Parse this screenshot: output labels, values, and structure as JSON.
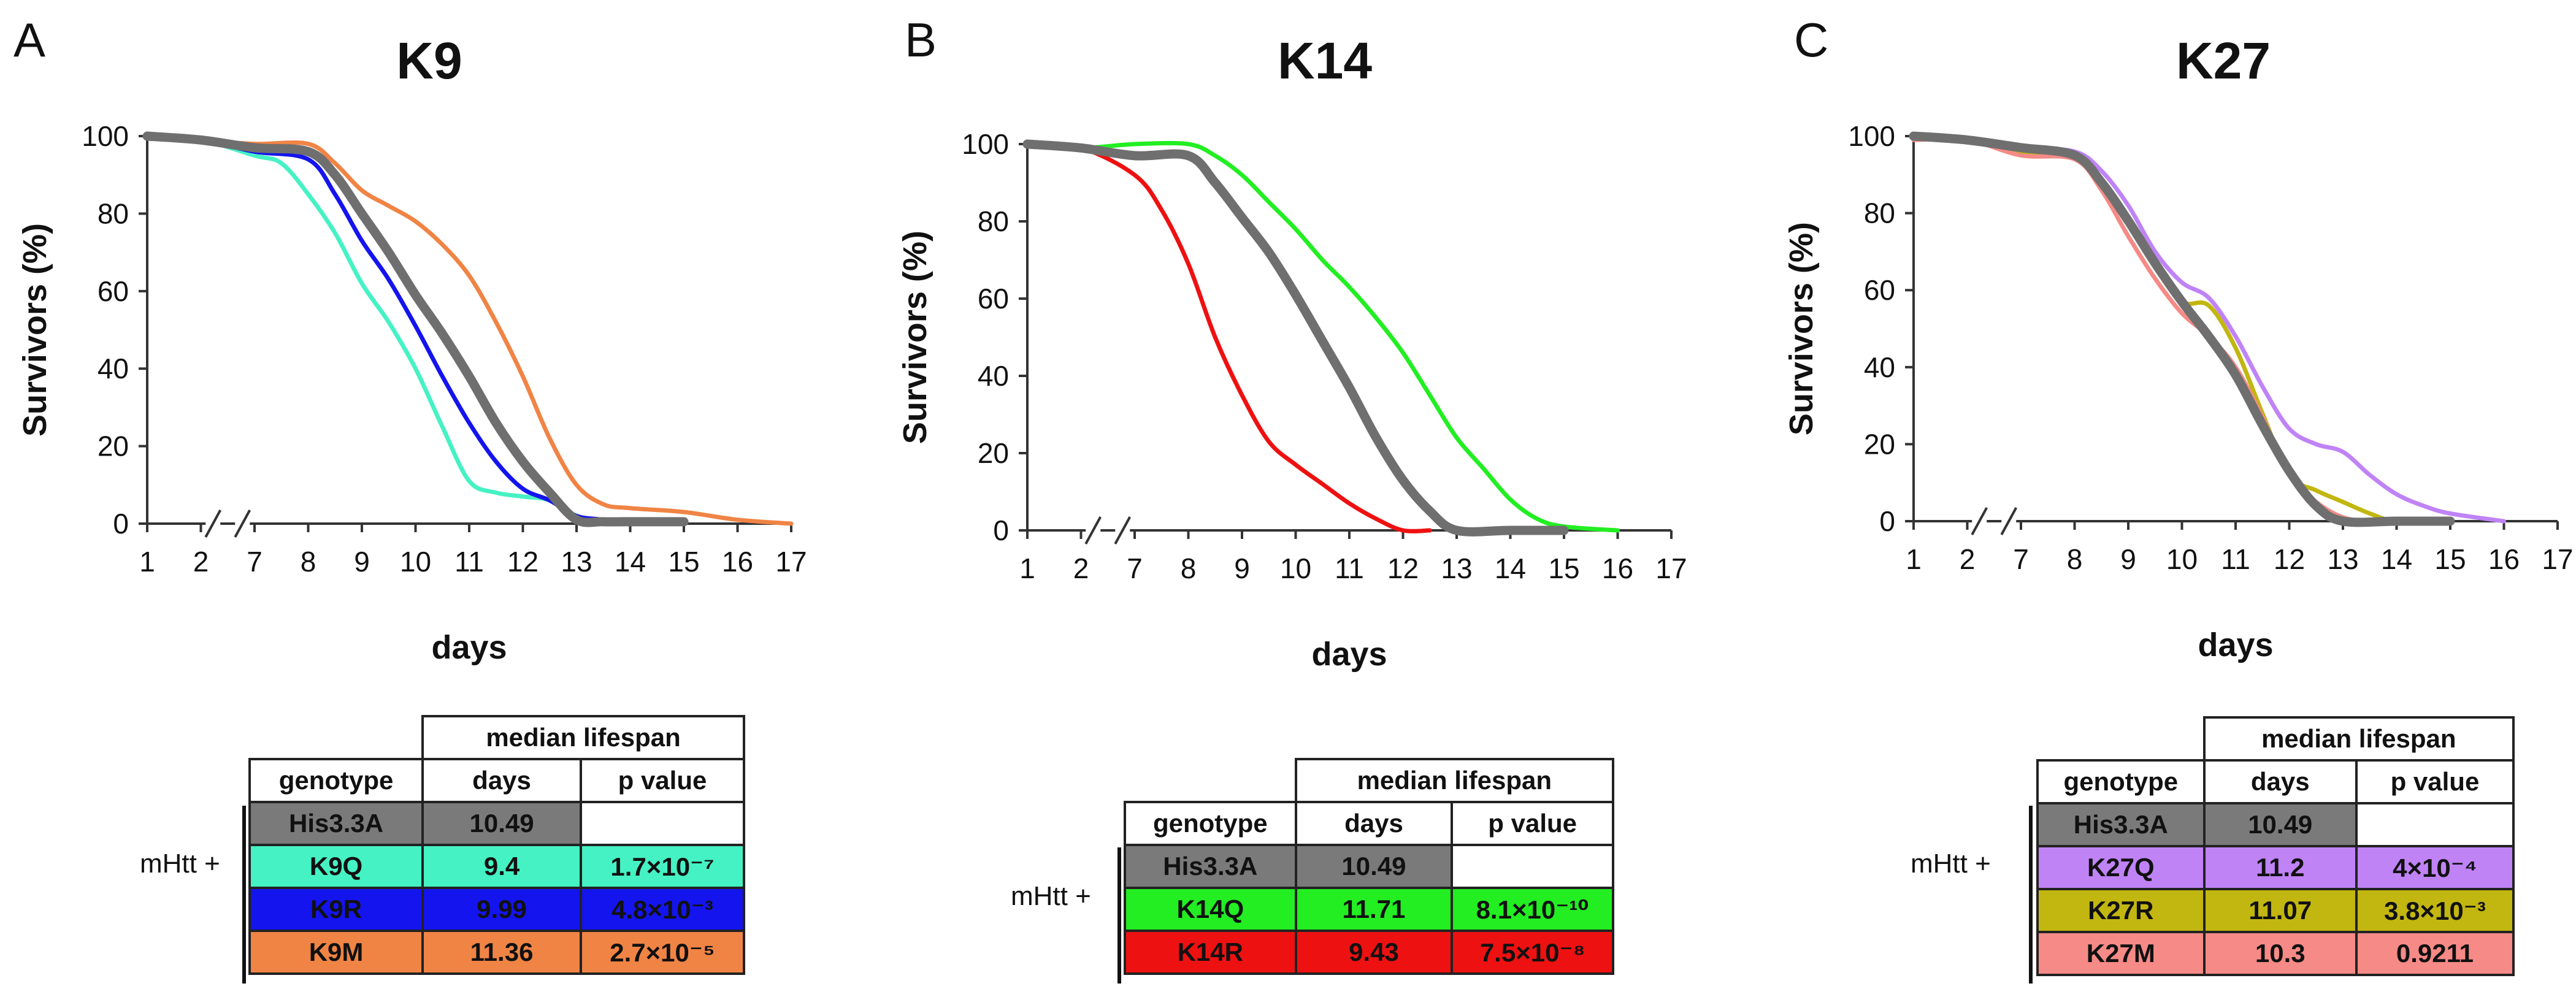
{
  "figure": {
    "panels": [
      {
        "id": "A",
        "panel_label": "A",
        "table": {
          "group_label": "mHtt +",
          "header_span": "median lifespan",
          "col_genotype": "genotype",
          "col_days": "days",
          "col_p": "p value",
          "rows": [
            {
              "genotype": "His3.3A",
              "days": "10.49",
              "p": "",
              "color": "#7a7a7a"
            },
            {
              "genotype": "K9Q",
              "days": "9.4",
              "p": "1.7×10⁻⁷",
              "color": "#45f2c4"
            },
            {
              "genotype": "K9R",
              "days": "9.99",
              "p": "4.8×10⁻³",
              "color": "#1414ee"
            },
            {
              "genotype": "K9M",
              "days": "11.36",
              "p": "2.7×10⁻⁵",
              "color": "#f08445"
            }
          ]
        }
      },
      {
        "id": "B",
        "panel_label": "B",
        "table": {
          "group_label": "mHtt +",
          "header_span": "median lifespan",
          "col_genotype": "genotype",
          "col_days": "days",
          "col_p": "p value",
          "rows": [
            {
              "genotype": "His3.3A",
              "days": "10.49",
              "p": "",
              "color": "#7a7a7a"
            },
            {
              "genotype": "K14Q",
              "days": "11.71",
              "p": "8.1×10⁻¹⁰",
              "color": "#22ee22"
            },
            {
              "genotype": "K14R",
              "days": "9.43",
              "p": "7.5×10⁻⁸",
              "color": "#ee1111"
            }
          ]
        }
      },
      {
        "id": "C",
        "panel_label": "C",
        "table": {
          "group_label": "mHtt +",
          "header_span": "median lifespan",
          "col_genotype": "genotype",
          "col_days": "days",
          "col_p": "p value",
          "rows": [
            {
              "genotype": "His3.3A",
              "days": "10.49",
              "p": "",
              "color": "#7a7a7a"
            },
            {
              "genotype": "K27Q",
              "days": "11.2",
              "p": "4×10⁻⁴",
              "color": "#c083f6"
            },
            {
              "genotype": "K27R",
              "days": "11.07",
              "p": "3.8×10⁻³",
              "color": "#c2b610"
            },
            {
              "genotype": "K27M",
              "days": "10.3",
              "p": "0.9211",
              "color": "#f58a86"
            }
          ]
        }
      }
    ]
  },
  "chart_data": [
    {
      "type": "line",
      "title": "K9",
      "xlabel": "days",
      "ylabel": "Survivors (%)",
      "x_ticks": [
        "1",
        "2",
        "7",
        "8",
        "9",
        "10",
        "11",
        "12",
        "13",
        "14",
        "15",
        "16",
        "17"
      ],
      "y_ticks": [
        "0",
        "20",
        "40",
        "60",
        "80",
        "100"
      ],
      "ylim": [
        0,
        100
      ],
      "axis_break": "between 2 and 7",
      "series": [
        {
          "name": "His3.3A",
          "color": "#6f6f6f",
          "width": "thick",
          "x": [
            1,
            2,
            7,
            8,
            8.5,
            9,
            9.5,
            10,
            10.5,
            11,
            11.5,
            12,
            12.5,
            13,
            13.5,
            14,
            15
          ],
          "y": [
            100,
            99,
            97,
            96,
            90,
            80,
            70,
            59,
            49,
            38,
            26,
            16,
            8,
            1,
            0.5,
            0.5,
            0.5
          ]
        },
        {
          "name": "K9Q",
          "color": "#45f2c4",
          "width": "normal",
          "x": [
            1,
            2,
            7,
            7.5,
            8,
            8.5,
            9,
            9.5,
            10,
            10.5,
            11,
            11.5,
            12,
            12.5,
            13,
            13.5,
            14
          ],
          "y": [
            100,
            99,
            95,
            93,
            85,
            75,
            62,
            52,
            40,
            25,
            11,
            8,
            7,
            6,
            2,
            0,
            0
          ]
        },
        {
          "name": "K9R",
          "color": "#1414ee",
          "width": "normal",
          "x": [
            1,
            2,
            7,
            8,
            8.5,
            9,
            9.5,
            10,
            10.5,
            11,
            11.5,
            12,
            12.5,
            13,
            13.5,
            14,
            14.5
          ],
          "y": [
            100,
            99,
            96,
            94,
            85,
            73,
            63,
            51,
            38,
            26,
            16,
            9,
            6,
            2,
            1,
            0,
            0
          ]
        },
        {
          "name": "K9M",
          "color": "#f08445",
          "width": "normal",
          "x": [
            1,
            2,
            7,
            8,
            8.5,
            9,
            9.5,
            10,
            10.5,
            11,
            11.5,
            12,
            12.5,
            13,
            13.5,
            14,
            15,
            16,
            17
          ],
          "y": [
            100,
            99,
            98,
            98,
            93,
            86,
            82,
            78,
            72,
            64,
            52,
            38,
            22,
            10,
            5,
            4,
            3,
            1,
            0
          ]
        }
      ]
    },
    {
      "type": "line",
      "title": "K14",
      "xlabel": "days",
      "ylabel": "Survivors (%)",
      "x_ticks": [
        "1",
        "2",
        "7",
        "8",
        "9",
        "10",
        "11",
        "12",
        "13",
        "14",
        "15",
        "16",
        "17"
      ],
      "y_ticks": [
        "0",
        "20",
        "40",
        "60",
        "80",
        "100"
      ],
      "ylim": [
        0,
        100
      ],
      "axis_break": "between 2 and 7",
      "series": [
        {
          "name": "His3.3A",
          "color": "#6f6f6f",
          "width": "thick",
          "x": [
            1,
            2,
            7,
            8,
            8.5,
            9,
            9.5,
            10,
            10.5,
            11,
            11.5,
            12,
            12.5,
            13,
            14,
            15
          ],
          "y": [
            100,
            99,
            97,
            97,
            90,
            81,
            72,
            61,
            49,
            37,
            24,
            13,
            5,
            0,
            0,
            0
          ]
        },
        {
          "name": "K14Q",
          "color": "#22ee22",
          "width": "normal",
          "x": [
            1,
            2,
            7,
            8,
            8.5,
            9,
            9.5,
            10,
            10.5,
            11,
            11.5,
            12,
            12.5,
            13,
            13.5,
            14,
            14.5,
            15,
            16
          ],
          "y": [
            100,
            99,
            100,
            100,
            97,
            92,
            85,
            78,
            70,
            63,
            55,
            46,
            35,
            24,
            16,
            8,
            3,
            1,
            0
          ]
        },
        {
          "name": "K14R",
          "color": "#ee1111",
          "width": "normal",
          "x": [
            1,
            2,
            7,
            7.5,
            8,
            8.5,
            9,
            9.5,
            10,
            10.5,
            11,
            11.5,
            12,
            12.5
          ],
          "y": [
            100,
            99,
            92,
            83,
            69,
            50,
            35,
            23,
            17,
            12,
            7,
            3,
            0,
            0
          ]
        }
      ]
    },
    {
      "type": "line",
      "title": "K27",
      "xlabel": "days",
      "ylabel": "Survivors (%)",
      "x_ticks": [
        "1",
        "2",
        "7",
        "8",
        "9",
        "10",
        "11",
        "12",
        "13",
        "14",
        "15",
        "16",
        "17"
      ],
      "y_ticks": [
        "0",
        "20",
        "40",
        "60",
        "80",
        "100"
      ],
      "ylim": [
        0,
        100
      ],
      "axis_break": "between 2 and 7",
      "series": [
        {
          "name": "His3.3A",
          "color": "#6f6f6f",
          "width": "thick",
          "x": [
            1,
            2,
            7,
            8,
            8.5,
            9,
            9.5,
            10,
            10.5,
            11,
            11.5,
            12,
            12.5,
            13,
            14,
            15
          ],
          "y": [
            100,
            99,
            97,
            95,
            88,
            78,
            67,
            57,
            48,
            38,
            25,
            13,
            4,
            0,
            0,
            0
          ]
        },
        {
          "name": "K27Q",
          "color": "#c083f6",
          "width": "normal",
          "x": [
            1,
            2,
            7,
            8,
            8.5,
            9,
            9.5,
            10,
            10.5,
            11,
            11.5,
            12,
            12.5,
            13,
            13.5,
            14,
            14.5,
            15,
            16
          ],
          "y": [
            100,
            99,
            97,
            96,
            91,
            82,
            70,
            62,
            58,
            48,
            35,
            24,
            20,
            18,
            12,
            7,
            4,
            2,
            0
          ]
        },
        {
          "name": "K27R",
          "color": "#c2b610",
          "width": "normal",
          "x": [
            1,
            2,
            7,
            8,
            8.5,
            9,
            9.5,
            10,
            10.5,
            11,
            11.5,
            12,
            12.5,
            13,
            13.5,
            14,
            15
          ],
          "y": [
            100,
            99,
            96,
            95,
            88,
            78,
            66,
            57,
            56,
            45,
            28,
            12,
            8,
            5,
            2,
            0,
            0
          ]
        },
        {
          "name": "K27M",
          "color": "#f58a86",
          "width": "normal",
          "x": [
            1,
            2,
            7,
            8,
            8.5,
            9,
            9.5,
            10,
            10.5,
            11,
            11.5,
            12,
            12.5,
            13,
            13.5,
            14
          ],
          "y": [
            99,
            99,
            95,
            94,
            86,
            74,
            63,
            54,
            48,
            40,
            27,
            12,
            5,
            1,
            0,
            0
          ]
        }
      ]
    }
  ]
}
